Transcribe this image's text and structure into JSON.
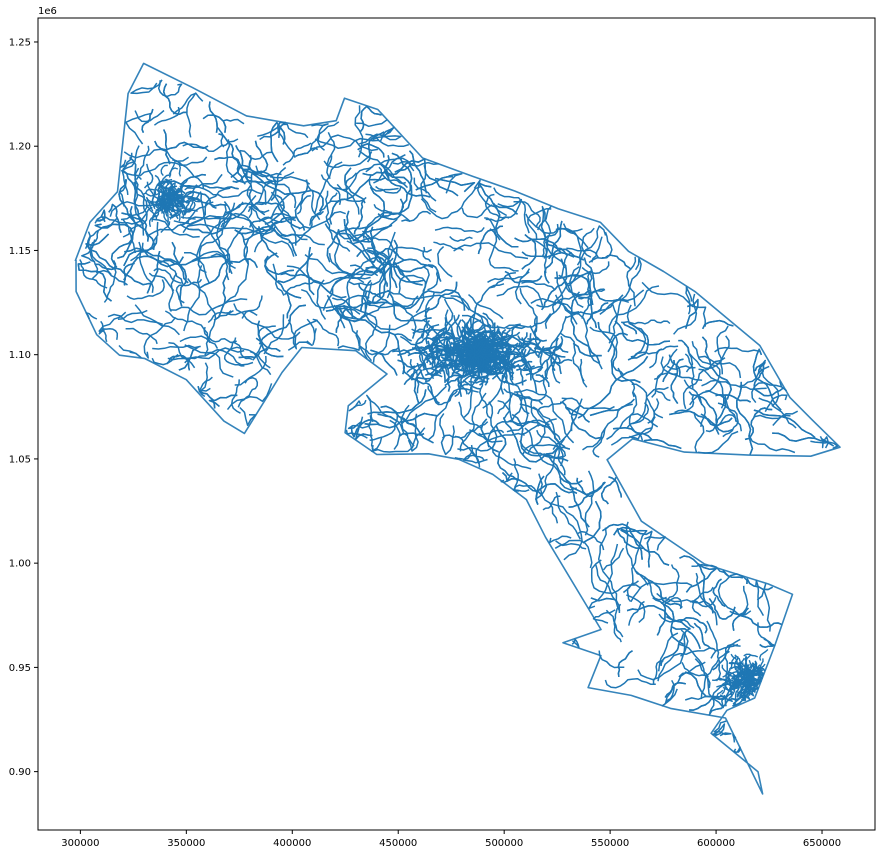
{
  "chart_data": {
    "type": "line",
    "title": "",
    "xlabel": "",
    "ylabel": "",
    "offset_text": "1e6",
    "xlim": [
      280000,
      675000
    ],
    "ylim": [
      0.872,
      1.2615
    ],
    "x_ticks": [
      300000,
      350000,
      400000,
      450000,
      500000,
      550000,
      600000,
      650000
    ],
    "x_tick_labels": [
      "300000",
      "350000",
      "400000",
      "450000",
      "500000",
      "550000",
      "600000",
      "650000"
    ],
    "y_ticks": [
      0.9,
      0.95,
      1.0,
      1.05,
      1.1,
      1.15,
      1.2,
      1.25
    ],
    "y_tick_labels": [
      "0.90",
      "0.95",
      "1.00",
      "1.05",
      "1.10",
      "1.15",
      "1.20",
      "1.25"
    ],
    "grid": false,
    "legend": "none",
    "line_color": "#1f77b4",
    "outline": [
      [
        298000,
        1.145
      ],
      [
        305000,
        1.163
      ],
      [
        318000,
        1.178
      ],
      [
        322000,
        1.225
      ],
      [
        330000,
        1.24
      ],
      [
        352000,
        1.228
      ],
      [
        378000,
        1.215
      ],
      [
        405000,
        1.21
      ],
      [
        420000,
        1.212
      ],
      [
        425000,
        1.223
      ],
      [
        440000,
        1.218
      ],
      [
        462000,
        1.195
      ],
      [
        485000,
        1.185
      ],
      [
        505000,
        1.178
      ],
      [
        525000,
        1.17
      ],
      [
        545000,
        1.163
      ],
      [
        558000,
        1.15
      ],
      [
        575000,
        1.14
      ],
      [
        590000,
        1.13
      ],
      [
        620000,
        1.105
      ],
      [
        635000,
        1.08
      ],
      [
        645000,
        1.068
      ],
      [
        658000,
        1.056
      ],
      [
        645000,
        1.052
      ],
      [
        615000,
        1.052
      ],
      [
        585000,
        1.053
      ],
      [
        560000,
        1.06
      ],
      [
        548000,
        1.05
      ],
      [
        565000,
        1.02
      ],
      [
        595000,
        1.0
      ],
      [
        625000,
        0.99
      ],
      [
        636000,
        0.985
      ],
      [
        628000,
        0.96
      ],
      [
        618000,
        0.935
      ],
      [
        605000,
        0.93
      ],
      [
        598000,
        0.918
      ],
      [
        620000,
        0.9
      ],
      [
        622000,
        0.89
      ],
      [
        605000,
        0.925
      ],
      [
        578000,
        0.93
      ],
      [
        560000,
        0.936
      ],
      [
        540000,
        0.94
      ],
      [
        545000,
        0.955
      ],
      [
        528000,
        0.962
      ],
      [
        545000,
        0.968
      ],
      [
        520000,
        1.012
      ],
      [
        510000,
        1.03
      ],
      [
        495000,
        1.042
      ],
      [
        478000,
        1.05
      ],
      [
        465000,
        1.052
      ],
      [
        440000,
        1.052
      ],
      [
        425000,
        1.062
      ],
      [
        427000,
        1.075
      ],
      [
        445000,
        1.09
      ],
      [
        430000,
        1.102
      ],
      [
        405000,
        1.104
      ],
      [
        395000,
        1.092
      ],
      [
        388000,
        1.078
      ],
      [
        378000,
        1.062
      ],
      [
        368000,
        1.068
      ],
      [
        350000,
        1.088
      ],
      [
        330000,
        1.098
      ],
      [
        318000,
        1.1
      ],
      [
        307000,
        1.11
      ],
      [
        298000,
        1.13
      ],
      [
        298000,
        1.145
      ]
    ],
    "annotations": []
  }
}
